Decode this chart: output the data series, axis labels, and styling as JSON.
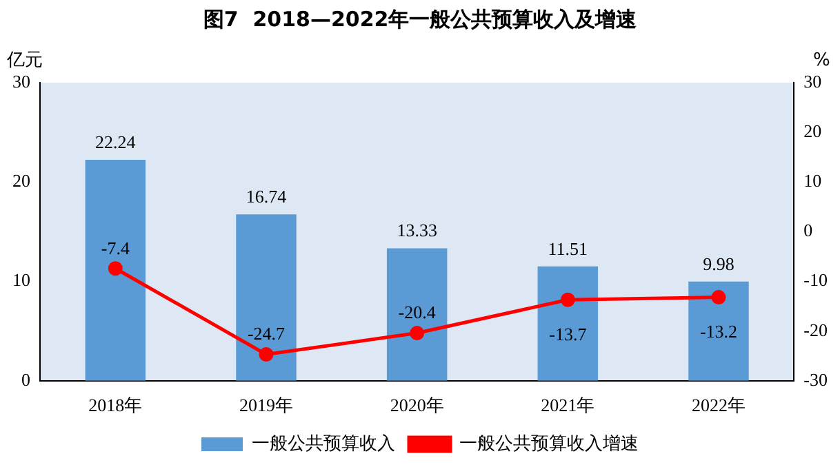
{
  "chart_data": {
    "type": "bar",
    "title": "图7  2018—2022年一般公共预算收入及增速",
    "ylabel": "亿元",
    "y2label": "%",
    "categories": [
      "2018年",
      "2019年",
      "2020年",
      "2021年",
      "2022年"
    ],
    "series": [
      {
        "name": "一般公共预算收入",
        "color": "#5b9bd5",
        "values": [
          22.24,
          16.74,
          13.33,
          11.51,
          9.98
        ]
      },
      {
        "name": "一般公共预算收入增速",
        "type": "line",
        "axis": "y2",
        "color": "#ff0000",
        "values": [
          -7.4,
          -24.7,
          -20.4,
          -13.7,
          -13.2
        ]
      }
    ],
    "ylim": [
      0,
      30
    ],
    "yticks": [
      0,
      10,
      20,
      30
    ],
    "y2lim": [
      -30,
      30
    ],
    "y2ticks": [
      -30,
      -20,
      -10,
      0,
      10,
      20,
      30
    ],
    "data_labels": true,
    "legend": "bottom",
    "marker": "circle",
    "grid": false
  }
}
